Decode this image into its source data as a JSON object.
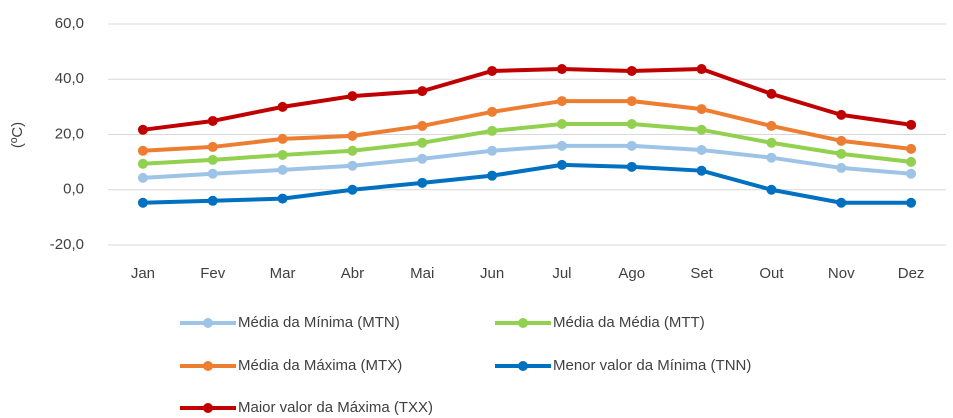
{
  "chart_data": {
    "type": "line",
    "y_label": "(ºC)",
    "categories": [
      "Jan",
      "Fev",
      "Mar",
      "Abr",
      "Mai",
      "Jun",
      "Jul",
      "Ago",
      "Set",
      "Out",
      "Nov",
      "Dez"
    ],
    "series": [
      {
        "name": "Média da Mínima (MTN)",
        "color": "#9dc3e6",
        "values": [
          4.3,
          5.8,
          7.2,
          8.7,
          11.2,
          14.1,
          15.9,
          15.9,
          14.4,
          11.6,
          7.9,
          5.8
        ]
      },
      {
        "name": "Média da Média (MTT)",
        "color": "#92d050",
        "values": [
          9.4,
          10.8,
          12.6,
          14.1,
          17.0,
          21.3,
          23.8,
          23.8,
          21.7,
          17.0,
          13.0,
          10.1
        ]
      },
      {
        "name": "Média da Máxima (MTX)",
        "color": "#ed7d31",
        "values": [
          14.1,
          15.5,
          18.4,
          19.5,
          23.1,
          28.2,
          32.1,
          32.1,
          29.2,
          23.1,
          17.7,
          14.8
        ]
      },
      {
        "name": "Menor valor da Mínima (TNN)",
        "color": "#0070c0",
        "values": [
          -4.7,
          -4.0,
          -3.2,
          0,
          2.5,
          5.1,
          9.0,
          8.3,
          6.9,
          0,
          -4.7,
          -4.7
        ]
      },
      {
        "name": "Maior valor da Máxima (TXX)",
        "color": "#c00000",
        "values": [
          21.7,
          24.9,
          30.0,
          33.9,
          35.7,
          43.0,
          43.7,
          43.0,
          43.7,
          34.7,
          27.1,
          23.5
        ]
      }
    ],
    "ylim": [
      -20,
      60
    ],
    "yticks": [
      {
        "value": -20,
        "label": "-20,0"
      },
      {
        "value": 0,
        "label": "0,0"
      },
      {
        "value": 20,
        "label": "20,0"
      },
      {
        "value": 40,
        "label": "40,0"
      },
      {
        "value": 60,
        "label": "60,0"
      }
    ],
    "grid": true
  }
}
